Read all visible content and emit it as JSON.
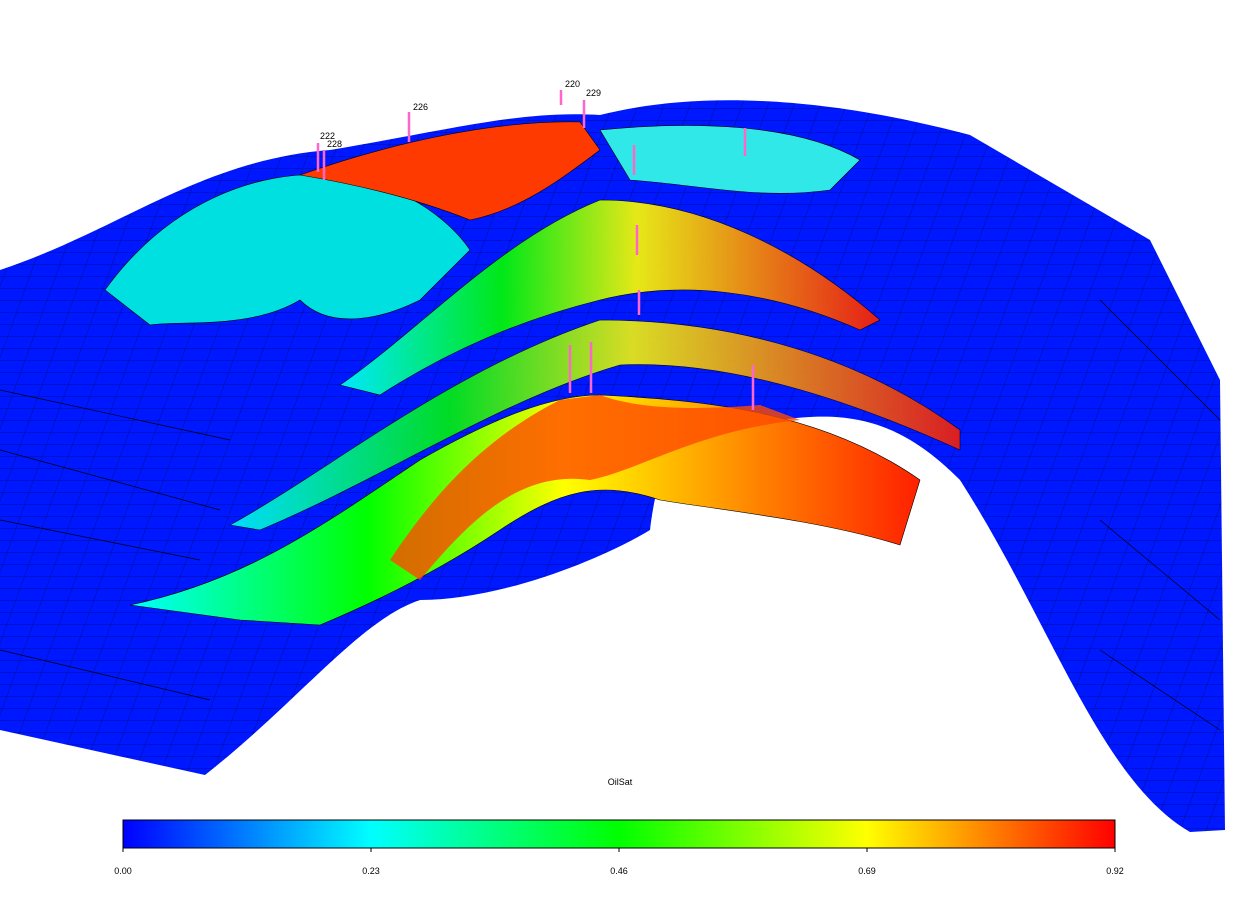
{
  "wells": [
    {
      "label": "220"
    },
    {
      "label": "229"
    },
    {
      "label": "226"
    },
    {
      "label": "222"
    },
    {
      "label": "228"
    }
  ],
  "colorbar": {
    "title": "OilSat",
    "range": [
      0,
      0.92
    ],
    "ticks": [
      {
        "value": 0,
        "label": "0.00"
      },
      {
        "value": 0.23,
        "label": "0.23"
      },
      {
        "value": 0.46,
        "label": "0.46"
      },
      {
        "value": 0.69,
        "label": "0.69"
      },
      {
        "value": 0.92,
        "label": "0.92"
      }
    ],
    "colors": [
      "#0000ff",
      "#00ffff",
      "#00ff00",
      "#ffff00",
      "#ff0000"
    ]
  }
}
